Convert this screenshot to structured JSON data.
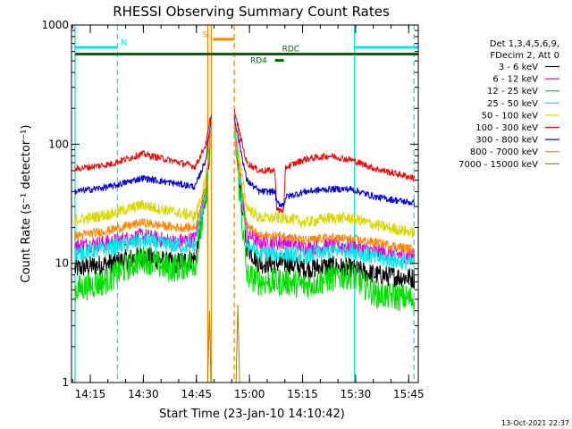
{
  "chart_data": {
    "type": "line",
    "title": "RHESSI Observing Summary Count Rates",
    "xlabel": "Start Time (23-Jan-10 14:10:42)",
    "ylabel": "Count Rate (s⁻¹ detector⁻¹)",
    "y_scale": "log",
    "ylim": [
      1,
      1000
    ],
    "xlim_minutes": [
      -1,
      97
    ],
    "y_ticks": [
      {
        "value": 1,
        "label": "1"
      },
      {
        "value": 10,
        "label": "10"
      },
      {
        "value": 100,
        "label": "100"
      },
      {
        "value": 1000,
        "label": "1000"
      }
    ],
    "x_ticks": [
      {
        "value": 4.3,
        "label": "14:15"
      },
      {
        "value": 19.3,
        "label": "14:30"
      },
      {
        "value": 34.3,
        "label": "14:45"
      },
      {
        "value": 49.3,
        "label": "15:00"
      },
      {
        "value": 64.3,
        "label": "15:15"
      },
      {
        "value": 79.3,
        "label": "15:30"
      },
      {
        "value": 94.3,
        "label": "15:45"
      }
    ],
    "legend": {
      "placement": "right",
      "header": [
        "Det 1,3,4,5,6,9,",
        "FDecim 2, Att 0"
      ]
    },
    "series": [
      {
        "name": "3 - 6 keV",
        "color": "#000000",
        "noise": 0.09,
        "points": [
          [
            0,
            9
          ],
          [
            10,
            10
          ],
          [
            19,
            11.5
          ],
          [
            28,
            10
          ],
          [
            34,
            11
          ],
          [
            37,
            35
          ],
          [
            38.5,
            150
          ],
          [
            45,
            130
          ],
          [
            48.5,
            14
          ],
          [
            52,
            10
          ],
          [
            60,
            10
          ],
          [
            65,
            9
          ],
          [
            72,
            9.5
          ],
          [
            78,
            9
          ],
          [
            85,
            8
          ],
          [
            96,
            7.5
          ]
        ]
      },
      {
        "name": "6 - 12 keV",
        "color": "#e000e0",
        "noise": 0.07,
        "points": [
          [
            0,
            14
          ],
          [
            10,
            15
          ],
          [
            19,
            17
          ],
          [
            28,
            15
          ],
          [
            34,
            16
          ],
          [
            37,
            45
          ],
          [
            38.5,
            160
          ],
          [
            45,
            150
          ],
          [
            48.5,
            18
          ],
          [
            52,
            15
          ],
          [
            60,
            15
          ],
          [
            65,
            13.5
          ],
          [
            72,
            14
          ],
          [
            78,
            14
          ],
          [
            85,
            12.5
          ],
          [
            96,
            11.5
          ]
        ]
      },
      {
        "name": "12 - 25 keV",
        "color": "#00e000",
        "noise": 0.12,
        "points": [
          [
            0,
            6
          ],
          [
            8,
            7
          ],
          [
            19,
            11
          ],
          [
            27,
            9
          ],
          [
            34,
            10
          ],
          [
            37,
            35
          ],
          [
            38.5,
            140
          ],
          [
            45,
            130
          ],
          [
            48.5,
            8
          ],
          [
            52,
            7
          ],
          [
            60,
            7
          ],
          [
            65,
            6.5
          ],
          [
            72,
            7.5
          ],
          [
            78,
            8
          ],
          [
            85,
            5.5
          ],
          [
            96,
            5
          ]
        ]
      },
      {
        "name": "25 - 50 keV",
        "color": "#00e8e8",
        "noise": 0.07,
        "points": [
          [
            0,
            12
          ],
          [
            10,
            13.5
          ],
          [
            19,
            15.5
          ],
          [
            28,
            14
          ],
          [
            34,
            14
          ],
          [
            37,
            42
          ],
          [
            38.5,
            155
          ],
          [
            45,
            140
          ],
          [
            48.5,
            15
          ],
          [
            52,
            12
          ],
          [
            60,
            12
          ],
          [
            65,
            11.5
          ],
          [
            72,
            12.5
          ],
          [
            78,
            13
          ],
          [
            85,
            11
          ],
          [
            96,
            10
          ]
        ]
      },
      {
        "name": "50 - 100 keV",
        "color": "#d8d800",
        "noise": 0.05,
        "points": [
          [
            0,
            23
          ],
          [
            10,
            26
          ],
          [
            19,
            31
          ],
          [
            28,
            27
          ],
          [
            34,
            25
          ],
          [
            37,
            50
          ],
          [
            38.5,
            160
          ],
          [
            45,
            150
          ],
          [
            48.5,
            30
          ],
          [
            52,
            24
          ],
          [
            60,
            24
          ],
          [
            65,
            22
          ],
          [
            72,
            24
          ],
          [
            78,
            24
          ],
          [
            85,
            21
          ],
          [
            96,
            18
          ]
        ]
      },
      {
        "name": "100 - 300 keV",
        "color": "#ff0000",
        "noise": 0.03,
        "points": [
          [
            0,
            62
          ],
          [
            10,
            68
          ],
          [
            19,
            83
          ],
          [
            28,
            72
          ],
          [
            34,
            65
          ],
          [
            37,
            100
          ],
          [
            38.5,
            180
          ],
          [
            45,
            190
          ],
          [
            48.5,
            70
          ],
          [
            52,
            60
          ],
          [
            56.5,
            60
          ],
          [
            57,
            28
          ],
          [
            59,
            28
          ],
          [
            59.5,
            64
          ],
          [
            65,
            75
          ],
          [
            72,
            80
          ],
          [
            78,
            74
          ],
          [
            85,
            62
          ],
          [
            96,
            52
          ]
        ]
      },
      {
        "name": "300 - 800 keV",
        "color": "#0000dd",
        "noise": 0.03,
        "points": [
          [
            0,
            40
          ],
          [
            10,
            44
          ],
          [
            19,
            52
          ],
          [
            28,
            47
          ],
          [
            34,
            44
          ],
          [
            37,
            75
          ],
          [
            38.5,
            170
          ],
          [
            45,
            170
          ],
          [
            48.5,
            50
          ],
          [
            52,
            40
          ],
          [
            56.5,
            40
          ],
          [
            57,
            32
          ],
          [
            59,
            31
          ],
          [
            59.5,
            36
          ],
          [
            65,
            40
          ],
          [
            72,
            42
          ],
          [
            78,
            42
          ],
          [
            85,
            36
          ],
          [
            96,
            32
          ]
        ]
      },
      {
        "name": "800 - 7000 keV",
        "color": "#ff8800",
        "noise": 0.04,
        "points": [
          [
            0,
            17
          ],
          [
            10,
            19
          ],
          [
            19,
            22
          ],
          [
            28,
            20
          ],
          [
            34,
            20
          ],
          [
            37,
            45
          ],
          [
            38.5,
            150
          ],
          [
            45,
            140
          ],
          [
            48.5,
            21
          ],
          [
            52,
            17
          ],
          [
            60,
            17
          ],
          [
            65,
            15.5
          ],
          [
            72,
            16.5
          ],
          [
            78,
            16
          ],
          [
            85,
            15
          ],
          [
            96,
            13
          ]
        ]
      },
      {
        "name": "7000 - 15000 keV",
        "color": "#998800",
        "noise": 0,
        "points": [
          [
            37.5,
            1
          ],
          [
            38,
            4
          ],
          [
            38.4,
            1
          ],
          [
            45.5,
            1
          ],
          [
            46,
            4.5
          ],
          [
            46.5,
            1
          ]
        ]
      }
    ],
    "annotations": [
      {
        "label": "N",
        "color": "#00e8e8",
        "segments": [
          [
            0,
            12
          ],
          [
            79,
            97
          ]
        ],
        "y": 650,
        "text_x": 13,
        "text_y": 680
      },
      {
        "label": "S",
        "color": "#ff8800",
        "segments": [
          [
            39,
            45
          ]
        ],
        "y": 760,
        "text_x": 36,
        "text_y": 790
      },
      {
        "label": "RDC",
        "color": "#006600",
        "segments": [
          [
            0,
            97
          ]
        ],
        "y": 570,
        "text_x": 58.5,
        "text_y": 600
      },
      {
        "label": "RD4",
        "color": "#006600",
        "segments": [
          [
            56.5,
            59
          ]
        ],
        "y": 505,
        "text_x": 49.5,
        "text_y": 480
      }
    ],
    "vlines": [
      {
        "x": 0,
        "color": "#00e8e8",
        "dash": false
      },
      {
        "x": 12,
        "color": "#00e8e8",
        "dash": true
      },
      {
        "x": 37.5,
        "color": "#ff8800",
        "dash": false
      },
      {
        "x": 38.5,
        "color": "#ff8800",
        "dash": false
      },
      {
        "x": 45,
        "color": "#ff8800",
        "dash": true
      },
      {
        "x": 79,
        "color": "#00e8e8",
        "dash": false
      },
      {
        "x": 95.8,
        "color": "#00e8e8",
        "dash": true
      }
    ]
  },
  "footer": {
    "timestamp": "13-Oct-2021 22:37"
  }
}
